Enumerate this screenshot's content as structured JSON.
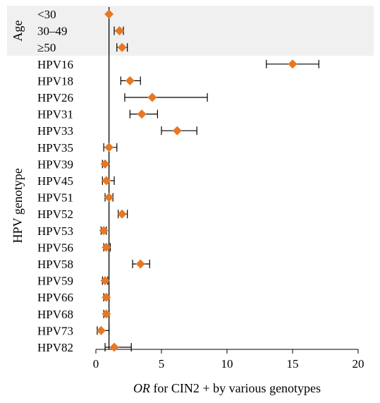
{
  "chart_data": {
    "type": "forest",
    "title": "",
    "xlabel_italic": "OR",
    "xlabel_rest": " for CIN2 + by various genotypes",
    "xlim": [
      0,
      20
    ],
    "xticks": [
      0,
      5,
      10,
      15,
      20
    ],
    "reference_line": 1,
    "groups": [
      {
        "name": "Age",
        "shaded": true,
        "start": 0,
        "end": 2
      },
      {
        "name": "HPV genotype",
        "shaded": false,
        "start": 3,
        "end": 20
      }
    ],
    "rows": [
      {
        "label": "<30",
        "or": 1.0,
        "lo": 1.0,
        "hi": 1.0
      },
      {
        "label": "30–49",
        "or": 1.8,
        "lo": 1.4,
        "hi": 2.1
      },
      {
        "label": "≥50",
        "or": 2.0,
        "lo": 1.6,
        "hi": 2.4
      },
      {
        "label": "HPV16",
        "or": 15.0,
        "lo": 13.0,
        "hi": 17.0
      },
      {
        "label": "HPV18",
        "or": 2.6,
        "lo": 1.9,
        "hi": 3.4
      },
      {
        "label": "HPV26",
        "or": 4.3,
        "lo": 2.2,
        "hi": 8.5
      },
      {
        "label": "HPV31",
        "or": 3.5,
        "lo": 2.6,
        "hi": 4.7
      },
      {
        "label": "HPV33",
        "or": 6.2,
        "lo": 5.0,
        "hi": 7.7
      },
      {
        "label": "HPV35",
        "or": 1.0,
        "lo": 0.6,
        "hi": 1.6
      },
      {
        "label": "HPV39",
        "or": 0.7,
        "lo": 0.5,
        "hi": 1.0
      },
      {
        "label": "HPV45",
        "or": 0.8,
        "lo": 0.5,
        "hi": 1.4
      },
      {
        "label": "HPV51",
        "or": 1.0,
        "lo": 0.7,
        "hi": 1.3
      },
      {
        "label": "HPV52",
        "or": 2.0,
        "lo": 1.7,
        "hi": 2.4
      },
      {
        "label": "HPV53",
        "or": 0.6,
        "lo": 0.4,
        "hi": 0.8
      },
      {
        "label": "HPV56",
        "or": 0.8,
        "lo": 0.6,
        "hi": 1.1
      },
      {
        "label": "HPV58",
        "or": 3.4,
        "lo": 2.8,
        "hi": 4.1
      },
      {
        "label": "HPV59",
        "or": 0.7,
        "lo": 0.5,
        "hi": 0.9
      },
      {
        "label": "HPV66",
        "or": 0.8,
        "lo": 0.6,
        "hi": 1.0
      },
      {
        "label": "HPV68",
        "or": 0.8,
        "lo": 0.6,
        "hi": 1.0
      },
      {
        "label": "HPV73",
        "or": 0.4,
        "lo": 0.1,
        "hi": 1.0
      },
      {
        "label": "HPV82",
        "or": 1.4,
        "lo": 0.7,
        "hi": 2.7
      }
    ],
    "marker_color": "#e87722",
    "line_color": "#000000",
    "band_color": "#f0f0f0"
  }
}
